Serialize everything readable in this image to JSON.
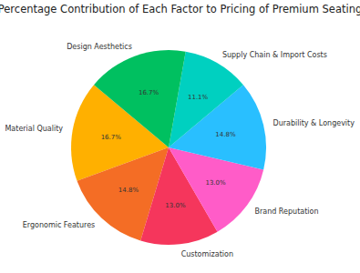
{
  "chart_data": {
    "type": "pie",
    "title": "Percentage Contribution of Each Factor to Pricing of Premium Seating",
    "categories": [
      "Material Quality",
      "Ergonomic Features",
      "Customization",
      "Brand Reputation",
      "Durability & Longevity",
      "Supply Chain & Import Costs",
      "Design Aesthetics"
    ],
    "values": [
      16.7,
      14.8,
      13.0,
      13.0,
      14.8,
      11.1,
      16.7
    ],
    "value_labels": [
      "16.7%",
      "14.8%",
      "13.0%",
      "13.0%",
      "14.8%",
      "11.1%",
      "16.7%"
    ],
    "colors": [
      "#ffb000",
      "#f46d25",
      "#f5365c",
      "#ff5cc8",
      "#29bfff",
      "#00d0c0",
      "#00c060"
    ],
    "data_labels": true
  }
}
